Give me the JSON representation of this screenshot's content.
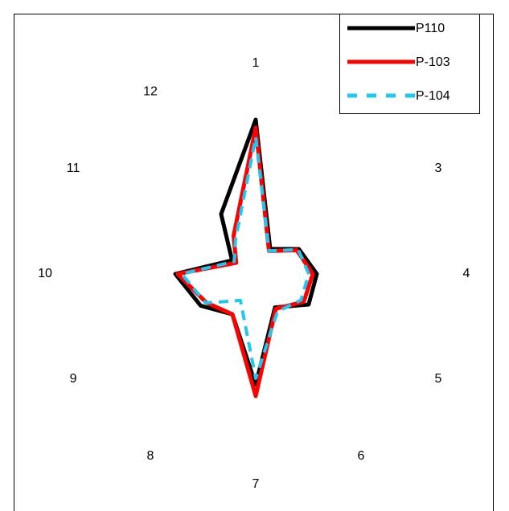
{
  "chart_data": {
    "type": "radar",
    "categories": [
      "1",
      null,
      "3",
      "4",
      "5",
      "6",
      "7",
      "8",
      "9",
      "10",
      "11",
      "12"
    ],
    "rlim": [
      0,
      262
    ],
    "legend": "top-right",
    "series": [
      {
        "name": "P110",
        "color": "#000000",
        "style": "solid",
        "values": [
          192,
          36,
          62,
          76,
          76,
          48,
          138,
          58,
          79,
          100,
          34,
          86
        ]
      },
      {
        "name": "P-103",
        "color": "#ff0000",
        "style": "solid",
        "values": [
          182,
          33,
          59,
          71,
          69,
          50,
          152,
          58,
          71,
          97,
          28,
          55
        ]
      },
      {
        "name": "P-104",
        "color": "#1ec8f0",
        "style": "dashed",
        "values": [
          170,
          33,
          61,
          66,
          65,
          54,
          130,
          38,
          72,
          92,
          31,
          50
        ]
      }
    ]
  }
}
